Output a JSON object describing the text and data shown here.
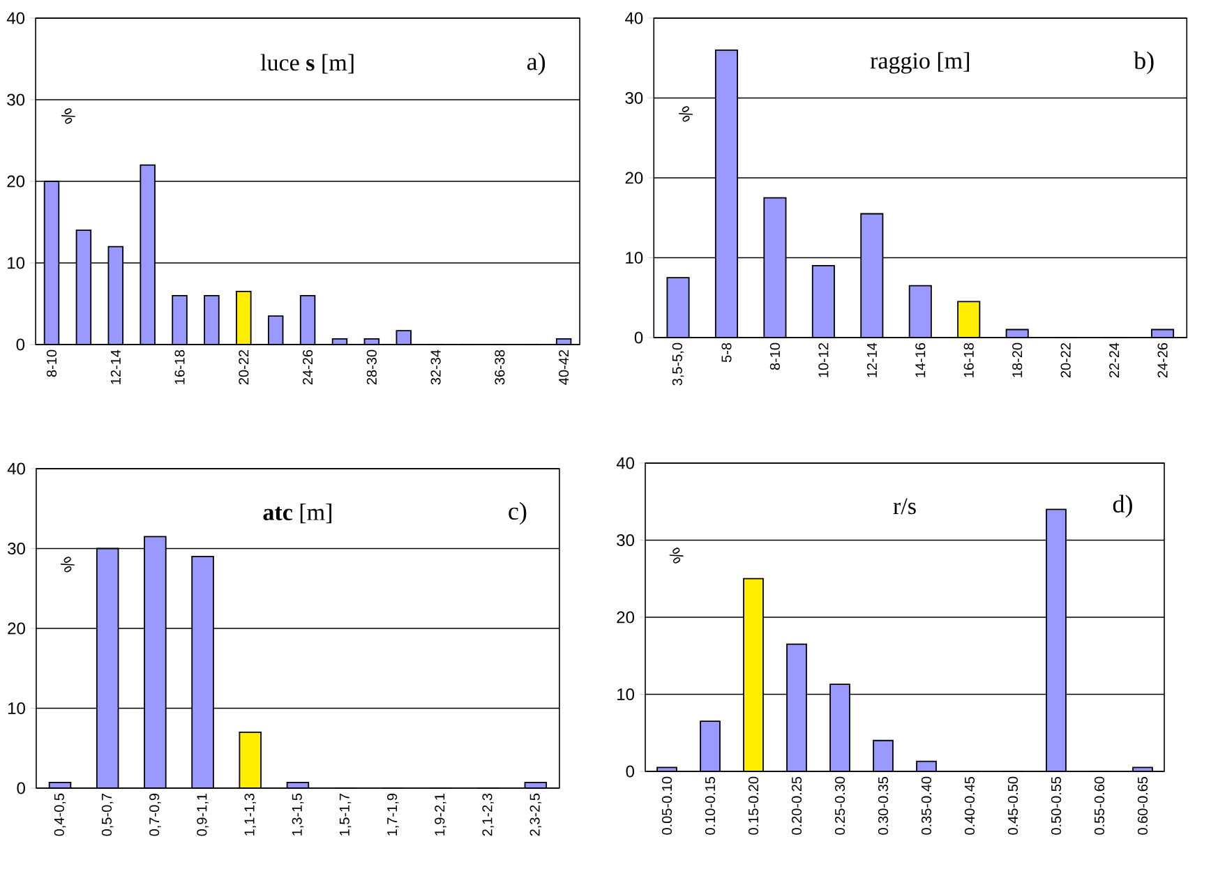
{
  "chart_data": [
    {
      "type": "bar",
      "title": "luce **s** [m]",
      "ylabel": "%",
      "annotations": [
        "a)"
      ],
      "categories": [
        "8-10",
        null,
        "12-14",
        null,
        "16-18",
        null,
        "20-22",
        null,
        "24-26",
        null,
        "28-30",
        null,
        "32-34",
        null,
        "36-38",
        null,
        "40-42"
      ],
      "values": [
        20,
        14,
        12,
        22,
        6,
        6,
        6.5,
        3.5,
        6,
        0.7,
        0.7,
        1.7,
        0,
        0,
        0,
        0,
        0.7
      ],
      "colors": [
        "#9999ff",
        "#9999ff",
        "#9999ff",
        "#9999ff",
        "#9999ff",
        "#9999ff",
        "#ffee00",
        "#9999ff",
        "#9999ff",
        "#9999ff",
        "#9999ff",
        "#9999ff",
        "#9999ff",
        "#9999ff",
        "#9999ff",
        "#9999ff",
        "#9999ff"
      ],
      "ylim": [
        0,
        40
      ],
      "yticks": [
        0,
        10,
        20,
        30,
        40
      ],
      "grid": "y"
    },
    {
      "type": "bar",
      "title": "raggio [m]",
      "ylabel": "%",
      "annotations": [
        "b)"
      ],
      "categories": [
        "3,5-5,0",
        "5-8",
        "8-10",
        "10-12",
        "12-14",
        "14-16",
        "16-18",
        "18-20",
        "20-22",
        "22-24",
        "24-26"
      ],
      "values": [
        7.5,
        36,
        17.5,
        9,
        15.5,
        6.5,
        4.5,
        1,
        0,
        0,
        1
      ],
      "colors": [
        "#9999ff",
        "#9999ff",
        "#9999ff",
        "#9999ff",
        "#9999ff",
        "#9999ff",
        "#ffee00",
        "#9999ff",
        "#9999ff",
        "#9999ff",
        "#9999ff"
      ],
      "ylim": [
        0,
        40
      ],
      "yticks": [
        0,
        10,
        20,
        30,
        40
      ],
      "grid": "y"
    },
    {
      "type": "bar",
      "title": "**atc** [m]",
      "ylabel": "%",
      "annotations": [
        "c)"
      ],
      "categories": [
        "0,4-0,5",
        "0,5-0,7",
        "0,7-0,9",
        "0,9-1,1",
        "1,1-1,3",
        "1,3-1,5",
        "1,5-1,7",
        "1,7-1,9",
        "1,9-2,1",
        "2,1-2,3",
        "2,3-2,5"
      ],
      "values": [
        0.7,
        30,
        31.5,
        29,
        7,
        0.7,
        0,
        0,
        0,
        0,
        0.7
      ],
      "colors": [
        "#9999ff",
        "#9999ff",
        "#9999ff",
        "#9999ff",
        "#ffee00",
        "#9999ff",
        "#9999ff",
        "#9999ff",
        "#9999ff",
        "#9999ff",
        "#9999ff"
      ],
      "ylim": [
        0,
        40
      ],
      "yticks": [
        0,
        10,
        20,
        30,
        40
      ],
      "grid": "y"
    },
    {
      "type": "bar",
      "title": "r/s",
      "ylabel": "%",
      "annotations": [
        "d)"
      ],
      "categories": [
        "0.05-0.10",
        "0.10-0.15",
        "0.15-0.20",
        "0.20-0.25",
        "0.25-0.30",
        "0.30-0.35",
        "0.35-0.40",
        "0.40-0.45",
        "0.45-0.50",
        "0.50-0.55",
        "0.55-0.60",
        "0.60-0.65"
      ],
      "values": [
        0.5,
        6.5,
        25,
        16.5,
        11.3,
        4,
        1.3,
        0,
        0,
        34,
        0,
        0.5
      ],
      "colors": [
        "#9999ff",
        "#9999ff",
        "#ffee00",
        "#9999ff",
        "#9999ff",
        "#9999ff",
        "#9999ff",
        "#9999ff",
        "#9999ff",
        "#9999ff",
        "#9999ff",
        "#9999ff"
      ],
      "ylim": [
        0,
        40
      ],
      "yticks": [
        0,
        10,
        20,
        30,
        40
      ],
      "grid": "y"
    }
  ]
}
